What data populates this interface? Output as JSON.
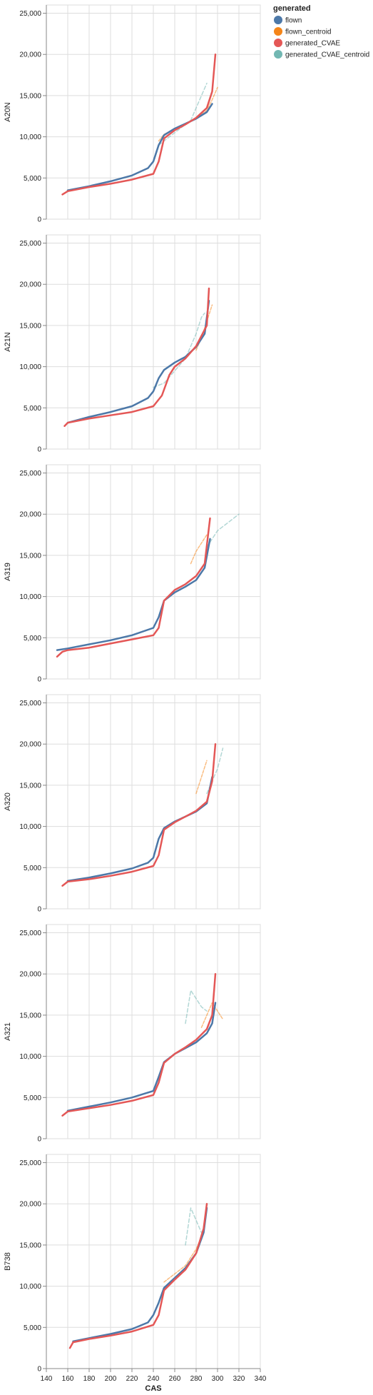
{
  "chart_data": {
    "type": "line",
    "layout": "vertical facets sharing x axis",
    "xlabel": "CAS",
    "xlim": [
      140,
      340
    ],
    "x_ticks": [
      140,
      160,
      180,
      200,
      220,
      240,
      260,
      280,
      300,
      320,
      340
    ],
    "ylim": [
      0,
      26000
    ],
    "y_ticks": [
      0,
      5000,
      10000,
      15000,
      20000,
      25000
    ],
    "y_tick_labels": [
      "0",
      "5,000",
      "10,000",
      "15,000",
      "20,000",
      "25,000"
    ],
    "grid": true,
    "legend": {
      "title": "generated",
      "position": "top-right",
      "entries": [
        {
          "name": "flown",
          "color": "#4c78a8"
        },
        {
          "name": "flown_centroid",
          "color": "#f58518"
        },
        {
          "name": "generated_CVAE",
          "color": "#e45756"
        },
        {
          "name": "generated_CVAE_centroid",
          "color": "#72b7b2"
        }
      ]
    },
    "facets": [
      {
        "label": "A20N",
        "series": [
          {
            "name": "flown",
            "x": [
              160,
              180,
              200,
              220,
              235,
              240,
              245,
              250,
              260,
              270,
              280,
              290,
              295
            ],
            "y": [
              3500,
              4000,
              4600,
              5300,
              6200,
              7000,
              9000,
              10200,
              11000,
              11600,
              12200,
              13000,
              14000
            ]
          },
          {
            "name": "flown_centroid",
            "x": [
              245,
              250,
              260,
              270,
              280,
              290,
              295,
              300
            ],
            "y": [
              9500,
              10300,
              11000,
              11600,
              12200,
              13200,
              14500,
              16000
            ]
          },
          {
            "name": "generated_CVAE",
            "x": [
              155,
              160,
              180,
              200,
              220,
              240,
              245,
              250,
              260,
              270,
              280,
              290,
              295,
              298
            ],
            "y": [
              3000,
              3400,
              3900,
              4300,
              4800,
              5500,
              7000,
              9800,
              10800,
              11500,
              12300,
              13500,
              15500,
              20000
            ]
          },
          {
            "name": "generated_CVAE_centroid",
            "x": [
              245,
              255,
              265,
              275,
              280,
              285,
              290
            ],
            "y": [
              9000,
              10000,
              11000,
              12000,
              13500,
              15000,
              16500
            ]
          }
        ]
      },
      {
        "label": "A21N",
        "series": [
          {
            "name": "flown",
            "x": [
              160,
              180,
              200,
              220,
              235,
              240,
              245,
              250,
              260,
              270,
              280,
              288,
              292
            ],
            "y": [
              3200,
              3900,
              4500,
              5200,
              6200,
              7000,
              8600,
              9600,
              10500,
              11200,
              12400,
              14000,
              18000
            ]
          },
          {
            "name": "flown_centroid",
            "x": [
              280,
              285,
              290,
              295
            ],
            "y": [
              12000,
              13500,
              15500,
              17500
            ]
          },
          {
            "name": "generated_CVAE",
            "x": [
              157,
              160,
              180,
              200,
              220,
              240,
              248,
              255,
              260,
              270,
              280,
              290,
              292
            ],
            "y": [
              2800,
              3200,
              3700,
              4100,
              4500,
              5200,
              6500,
              9000,
              10000,
              11000,
              12500,
              15000,
              19500
            ]
          },
          {
            "name": "generated_CVAE_centroid",
            "x": [
              240,
              250,
              260,
              270,
              275,
              280,
              285,
              288
            ],
            "y": [
              7500,
              8000,
              9500,
              11000,
              12500,
              14000,
              16000,
              16500
            ]
          }
        ]
      },
      {
        "label": "A319",
        "series": [
          {
            "name": "flown",
            "x": [
              150,
              160,
              180,
              200,
              220,
              240,
              245,
              250,
              260,
              270,
              280,
              288,
              293
            ],
            "y": [
              3500,
              3700,
              4200,
              4700,
              5300,
              6200,
              7500,
              9500,
              10500,
              11200,
              12000,
              13500,
              17000
            ]
          },
          {
            "name": "flown_centroid",
            "x": [
              275,
              280,
              285,
              290
            ],
            "y": [
              14000,
              15500,
              16500,
              17500
            ]
          },
          {
            "name": "generated_CVAE",
            "x": [
              150,
              155,
              160,
              180,
              200,
              220,
              240,
              245,
              250,
              260,
              270,
              280,
              288,
              293
            ],
            "y": [
              2700,
              3300,
              3500,
              3800,
              4300,
              4800,
              5300,
              6200,
              9500,
              10800,
              11500,
              12500,
              14000,
              19500
            ]
          },
          {
            "name": "generated_CVAE_centroid",
            "x": [
              290,
              300,
              310,
              320
            ],
            "y": [
              16000,
              18000,
              19000,
              20000
            ]
          }
        ]
      },
      {
        "label": "A320",
        "series": [
          {
            "name": "flown",
            "x": [
              160,
              180,
              200,
              220,
              235,
              240,
              245,
              250,
              260,
              270,
              280,
              290,
              295
            ],
            "y": [
              3400,
              3800,
              4300,
              4900,
              5600,
              6200,
              8500,
              9800,
              10600,
              11200,
              11800,
              12800,
              16000
            ]
          },
          {
            "name": "flown_centroid",
            "x": [
              280,
              285,
              290
            ],
            "y": [
              14000,
              16000,
              18000
            ]
          },
          {
            "name": "generated_CVAE",
            "x": [
              155,
              160,
              180,
              200,
              220,
              240,
              245,
              250,
              260,
              270,
              280,
              290,
              295,
              298
            ],
            "y": [
              2800,
              3300,
              3600,
              4000,
              4500,
              5200,
              6500,
              9600,
              10500,
              11200,
              11900,
              13000,
              15500,
              20000
            ]
          },
          {
            "name": "generated_CVAE_centroid",
            "x": [
              290,
              300,
              305
            ],
            "y": [
              14000,
              17000,
              19500
            ]
          }
        ]
      },
      {
        "label": "A321",
        "series": [
          {
            "name": "flown",
            "x": [
              160,
              180,
              200,
              220,
              240,
              245,
              250,
              260,
              270,
              280,
              290,
              295,
              298
            ],
            "y": [
              3400,
              3900,
              4400,
              5000,
              5800,
              7500,
              9300,
              10300,
              11000,
              11700,
              12800,
              14000,
              16500
            ]
          },
          {
            "name": "flown_centroid",
            "x": [
              285,
              290,
              295,
              300,
              305
            ],
            "y": [
              13500,
              15000,
              16500,
              15500,
              14500
            ]
          },
          {
            "name": "generated_CVAE",
            "x": [
              155,
              160,
              180,
              200,
              220,
              240,
              245,
              250,
              260,
              270,
              280,
              290,
              295,
              298
            ],
            "y": [
              2800,
              3300,
              3700,
              4100,
              4600,
              5300,
              6800,
              9200,
              10300,
              11100,
              12000,
              13300,
              15000,
              20000
            ]
          },
          {
            "name": "generated_CVAE_centroid",
            "x": [
              270,
              275,
              280,
              285,
              290
            ],
            "y": [
              14000,
              18000,
              17000,
              16000,
              15500
            ]
          }
        ]
      },
      {
        "label": "B738",
        "series": [
          {
            "name": "flown",
            "x": [
              165,
              180,
              200,
              220,
              235,
              240,
              245,
              250,
              260,
              270,
              280,
              287,
              290
            ],
            "y": [
              3300,
              3700,
              4200,
              4800,
              5600,
              6500,
              8000,
              9800,
              11000,
              12200,
              14000,
              16500,
              19500
            ]
          },
          {
            "name": "flown_centroid",
            "x": [
              250,
              260,
              270,
              280,
              285
            ],
            "y": [
              10500,
              11500,
              12500,
              14500,
              16000
            ]
          },
          {
            "name": "generated_CVAE",
            "x": [
              162,
              165,
              180,
              200,
              220,
              240,
              245,
              250,
              260,
              270,
              280,
              287,
              290
            ],
            "y": [
              2500,
              3200,
              3600,
              4000,
              4500,
              5300,
              6500,
              9500,
              10800,
              12000,
              14000,
              17000,
              20000
            ]
          },
          {
            "name": "generated_CVAE_centroid",
            "x": [
              270,
              275,
              280,
              285
            ],
            "y": [
              15000,
              19500,
              18000,
              16500
            ]
          }
        ]
      }
    ]
  }
}
